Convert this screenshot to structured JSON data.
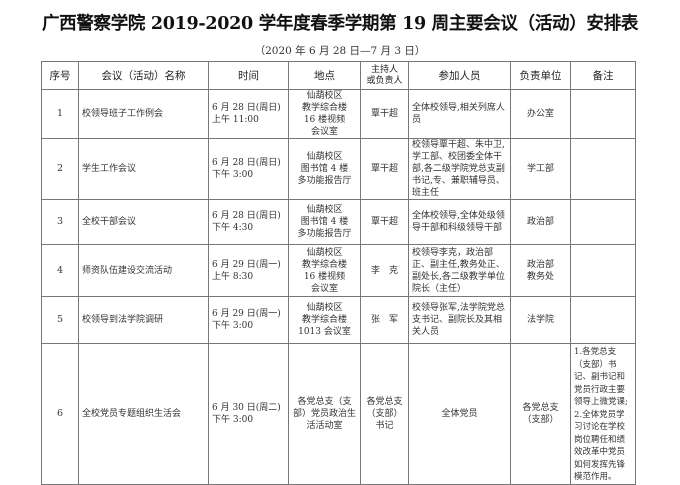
{
  "title": "广西警察学院 2019-2020 学年度春季学期第 19 周主要会议（活动）安排表",
  "subtitle": "（2020 年 6 月 28 日—7 月 3 日）",
  "columns": [
    "序号",
    "会议（活动）名称",
    "时间",
    "地点",
    "主持人\n或负责人",
    "参加人员",
    "负责单位",
    "备注"
  ],
  "rows": [
    {
      "no": "1",
      "name": "校领导班子工作例会",
      "time": "6 月 28 日(周日)\n上午 11:00",
      "place": "仙葫校区\n教学综合楼\n16 楼视频\n会议室",
      "host": "覃干超",
      "participants": "全体校领导,相关列席人员",
      "unit": "办公室",
      "note": ""
    },
    {
      "no": "2",
      "name": "学生工作会议",
      "time": "6 月 28 日(周日)\n下午 3:00",
      "place": "仙葫校区\n图书馆 4 楼\n多功能报告厅",
      "host": "覃干超",
      "participants": "校领导覃干超、朱中卫,学工部、校团委全体干部,各二级学院党总支副书记,专、兼职辅导员、班主任",
      "unit": "学工部",
      "note": ""
    },
    {
      "no": "3",
      "name": "全校干部会议",
      "time": "6 月 28 日(周日)\n下午 4:30",
      "place": "仙葫校区\n图书馆 4 楼\n多功能报告厅",
      "host": "覃干超",
      "participants": "全体校领导,全体处级领导干部和科级领导干部",
      "unit": "政治部",
      "note": ""
    },
    {
      "no": "4",
      "name": "师资队伍建设交流活动",
      "time": "6 月 29 日(周一)\n上午 8:30",
      "place": "仙葫校区\n教学综合楼\n16 楼视频\n会议室",
      "host": "李　克",
      "participants": "校领导李克，政治部正、副主任,教务处正、副处长,各二级教学单位院长（主任）",
      "unit": "政治部\n教务处",
      "note": ""
    },
    {
      "no": "5",
      "name": "校领导到法学院调研",
      "time": "6 月 29 日(周一)\n下午 3:00",
      "place": "仙葫校区\n教学综合楼\n1013 会议室",
      "host": "张　军",
      "participants": "校领导张军,法学院党总支书记、副院长及其相关人员",
      "unit": "法学院",
      "note": ""
    },
    {
      "no": "6",
      "name": "全校党员专题组织生活会",
      "time": "6 月 30 日(周二)\n下午 3:00",
      "place": "各党总支（支部）党员政治生活活动室",
      "host": "各党总支\n（支部）\n书记",
      "participants": "全体党员",
      "unit": "各党总支\n（支部）",
      "note": "1.各党总支（支部）书记、副书记和党员行政主要领导上微党课;\n2.全体党员学习讨论在学校岗位聘任和绩效改革中党员如何发挥先锋模范作用。"
    }
  ]
}
